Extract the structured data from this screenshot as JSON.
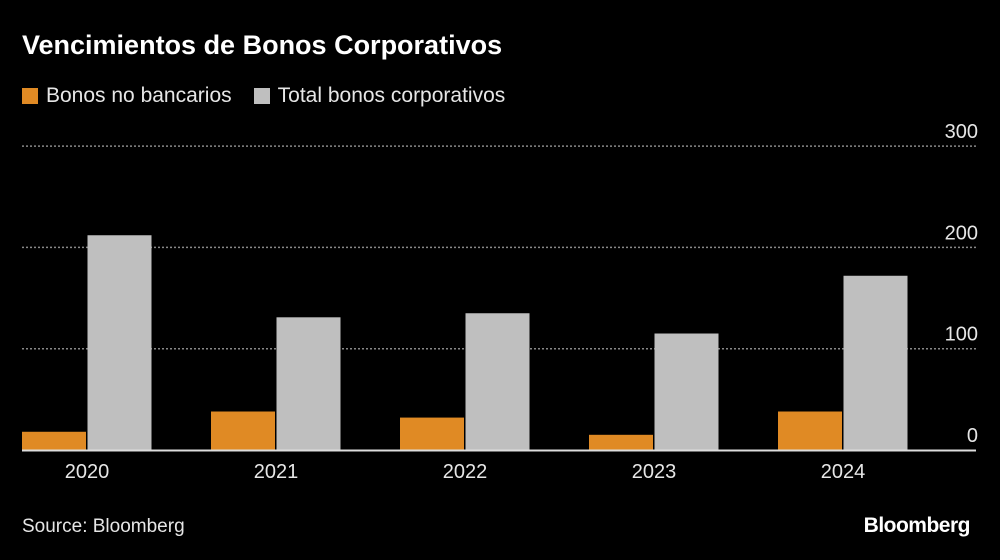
{
  "chart_data": {
    "type": "bar",
    "title": "Vencimientos de Bonos Corporativos",
    "categories": [
      "2020",
      "2021",
      "2022",
      "2023",
      "2024"
    ],
    "series": [
      {
        "name": "Bonos no bancarios",
        "color": "#e08a24",
        "values": [
          18,
          38,
          32,
          15,
          38
        ]
      },
      {
        "name": "Total bonos corporativos",
        "color": "#bfbfbf",
        "values": [
          212,
          131,
          135,
          115,
          172
        ]
      }
    ],
    "ylim": [
      0,
      300
    ],
    "yticks": [
      "0",
      "100",
      "200",
      "300"
    ],
    "grid": true,
    "legend": "top-left",
    "y_axis_position": "right"
  },
  "source": "Source: Bloomberg",
  "logo": "Bloomberg"
}
